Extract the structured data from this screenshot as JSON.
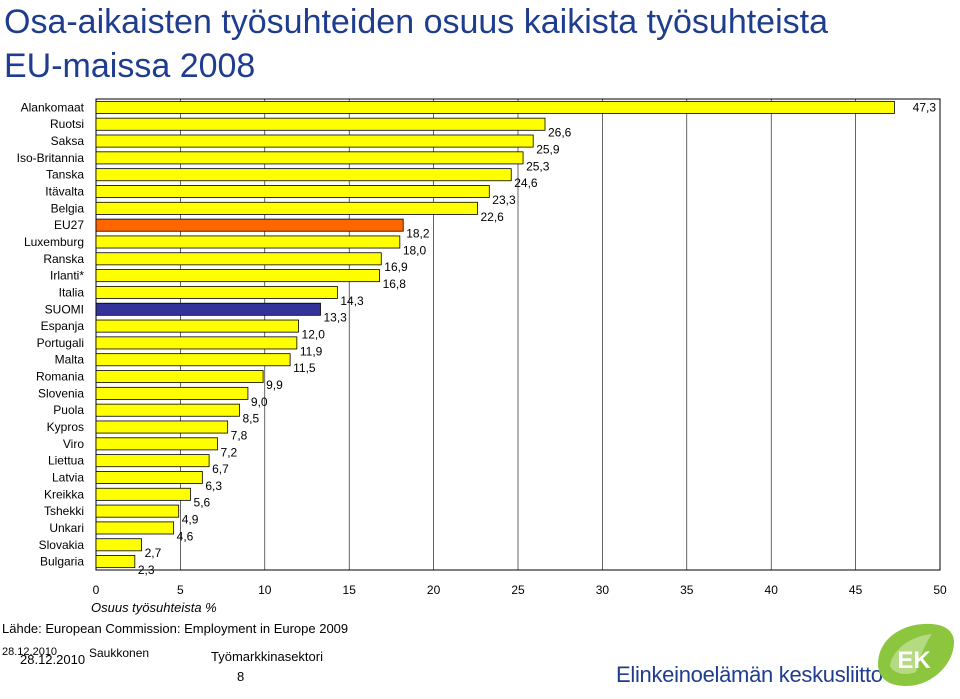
{
  "title_line1": "Osa-aikaisten työsuhteiden osuus kaikista työsuhteista",
  "title_line2": "EU-maissa 2008",
  "source": "Lähde: European Commission: Employment in Europe 2009",
  "footer": {
    "date_small": "28.12.2010",
    "date": "28.12.2010",
    "author": "Saukkonen",
    "org": "Työmarkkinasektori",
    "page": "8"
  },
  "logo": {
    "text": "Elinkeinoelämän keskusliitto",
    "mark_text": "EK",
    "colors": {
      "text": "#1f3d8f",
      "mark_green": "#8cc63f",
      "mark_blue": "#1f3d8f"
    }
  },
  "colors": {
    "title": "#1f3d8f",
    "bar_default": "#ffff00",
    "bar_eu27": "#ff6600",
    "bar_suomi": "#333399",
    "grid": "#000000"
  },
  "chart_data": {
    "type": "bar",
    "orientation": "horizontal",
    "title": "",
    "xlabel": "Osuus työsuhteista %",
    "ylabel": "",
    "xlim": [
      0,
      50
    ],
    "xticks": [
      0,
      5,
      10,
      15,
      20,
      25,
      30,
      35,
      40,
      45,
      50
    ],
    "grid": true,
    "legend": "none",
    "categories": [
      "Alankomaat",
      "Ruotsi",
      "Saksa",
      "Iso-Britannia",
      "Tanska",
      "Itävalta",
      "Belgia",
      "EU27",
      "Luxemburg",
      "Ranska",
      "Irlanti*",
      "Italia",
      "SUOMI",
      "Espanja",
      "Portugali",
      "Malta",
      "Romania",
      "Slovenia",
      "Puola",
      "Kypros",
      "Viro",
      "Liettua",
      "Latvia",
      "Kreikka",
      "Tshekki",
      "Unkari",
      "Slovakia",
      "Bulgaria"
    ],
    "values": [
      47.3,
      26.6,
      25.9,
      25.3,
      24.6,
      23.3,
      22.6,
      18.2,
      18.0,
      16.9,
      16.8,
      14.3,
      13.3,
      12.0,
      11.9,
      11.5,
      9.9,
      9.0,
      8.5,
      7.8,
      7.2,
      6.7,
      6.3,
      5.6,
      4.9,
      4.6,
      2.7,
      2.3
    ],
    "value_labels": [
      "47,3",
      "26,6",
      "25,9",
      "25,3",
      "24,6",
      "23,3",
      "22,6",
      "18,2",
      "18,0",
      "16,9",
      "16,8",
      "14,3",
      "13,3",
      "12,0",
      "11,9",
      "11,5",
      "9,9",
      "9,0",
      "8,5",
      "7,8",
      "7,2",
      "6,7",
      "6,3",
      "5,6",
      "4,9",
      "4,6",
      "2,7",
      "2,3"
    ],
    "highlight": {
      "EU27": "#ff6600",
      "SUOMI": "#333399"
    }
  }
}
